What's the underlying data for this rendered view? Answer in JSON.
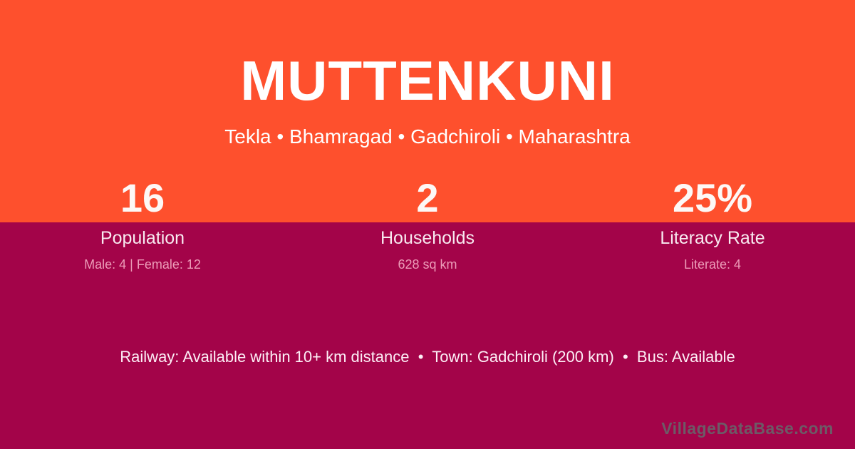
{
  "header": {
    "title": "MUTTENKUNI",
    "subtitle": "Tekla • Bhamragad • Gadchiroli • Maharashtra"
  },
  "stats": [
    {
      "value": "16",
      "label": "Population",
      "detail": "Male: 4 | Female: 12"
    },
    {
      "value": "2",
      "label": "Households",
      "detail": "628 sq km"
    },
    {
      "value": "25%",
      "label": "Literacy Rate",
      "detail": "Literate: 4"
    }
  ],
  "footer": {
    "info_line": "Railway: Available within 10+ km distance  •  Town: Gadchiroli (200 km)  •  Bus: Available",
    "watermark": "VillageDataBase.com"
  },
  "colors": {
    "hero_background": "#fe502d",
    "body_background": "#a30449",
    "primary_text": "#ffffff",
    "label_text": "#f8eaf0",
    "detail_text": "#ec9cb8",
    "watermark_text": "#6d5a66"
  }
}
